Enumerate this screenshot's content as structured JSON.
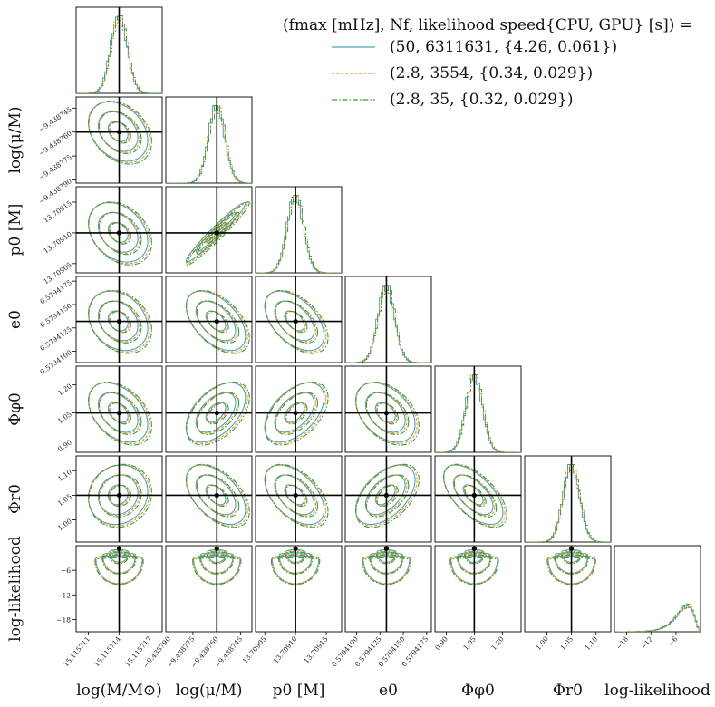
{
  "chart_data": {
    "type": "corner",
    "parameters": [
      {
        "key": "logM",
        "label": "log(M/M⊙)",
        "truth": 15.115714,
        "range": [
          15.1157098,
          15.1157182
        ],
        "ticks": [
          15.115711,
          15.115714,
          15.115717
        ],
        "tick_labels": [
          "15.115711",
          "15.115714",
          "15.115717"
        ]
      },
      {
        "key": "logmu",
        "label": "log(μ/M)",
        "truth": -9.43876,
        "range": [
          -9.438792,
          -9.438738
        ],
        "ticks": [
          -9.43879,
          -9.438775,
          -9.43876,
          -9.438745
        ],
        "tick_labels": [
          "−9.438790",
          "−9.438775",
          "−9.438760",
          "−9.438745"
        ]
      },
      {
        "key": "p0",
        "label": "p0 [M]",
        "truth": 13.7091,
        "range": [
          13.709035,
          13.709175
        ],
        "ticks": [
          13.70905,
          13.7091,
          13.70915
        ],
        "tick_labels": [
          "13.70905",
          "13.70910",
          "13.70915"
        ]
      },
      {
        "key": "e0",
        "label": "e0",
        "truth": 0.5794132,
        "range": [
          0.5794088,
          0.579418
        ],
        "ticks": [
          0.57941,
          0.5794125,
          0.579415,
          0.5794175
        ],
        "tick_labels": [
          "0.5794100",
          "0.5794125",
          "0.5794150",
          "0.5794175"
        ]
      },
      {
        "key": "Phiphi0",
        "label": "Φφ0",
        "truth": 1.05,
        "range": [
          0.84,
          1.3
        ],
        "ticks": [
          0.9,
          1.05,
          1.2
        ],
        "tick_labels": [
          "0.90",
          "1.05",
          "1.20"
        ]
      },
      {
        "key": "Phir0",
        "label": "Φr0",
        "truth": 1.05,
        "range": [
          0.955,
          1.13
        ],
        "ticks": [
          1.0,
          1.05,
          1.1
        ],
        "tick_labels": [
          "1.00",
          "1.05",
          "1.10"
        ]
      },
      {
        "key": "loglike",
        "label": "log-likelihood",
        "truth": null,
        "range": [
          -21,
          0
        ],
        "ticks": [
          -18,
          -12,
          -6
        ],
        "tick_labels": [
          "−18",
          "−12",
          "−6"
        ]
      }
    ],
    "correlations": {
      "1-0": -0.3,
      "2-0": -0.3,
      "2-1": 0.97,
      "3-0": -0.25,
      "3-1": -0.5,
      "3-2": -0.5,
      "4-0": -0.4,
      "4-1": 0.5,
      "4-2": 0.5,
      "4-3": -0.4,
      "5-0": 0.1,
      "5-1": -0.5,
      "5-2": -0.5,
      "5-3": 0.5,
      "5-4": -0.6
    },
    "series": [
      {
        "name": "(50, 6311631, {4.26, 0.061})",
        "color": "#4aa3b8",
        "dash": "none"
      },
      {
        "name": "(2.8, 3554, {0.34, 0.029})",
        "color": "#f0952a",
        "dash": "3,2"
      },
      {
        "name": "(2.8, 35, {0.32, 0.029})",
        "color": "#3d9c3d",
        "dash": "6,2,1.5,2"
      }
    ],
    "legend": {
      "title": "(fmax [mHz], Nf, likelihood speed{CPU, GPU} [s]) =",
      "placement": "top-right"
    }
  }
}
